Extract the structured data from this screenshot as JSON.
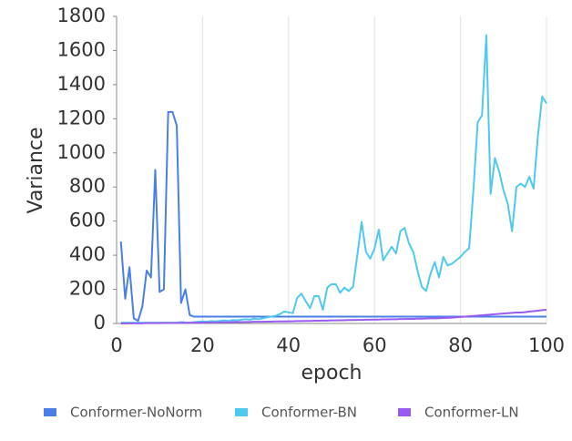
{
  "chart_data": {
    "type": "line",
    "xlabel": "epoch",
    "ylabel": "Variance",
    "xlim": [
      0,
      100
    ],
    "xticks": [
      0,
      20,
      40,
      60,
      80,
      100
    ],
    "ylim": [
      0,
      1800
    ],
    "yticks": [
      0,
      200,
      400,
      600,
      800,
      1000,
      1200,
      1400,
      1600,
      1800
    ],
    "grid": "x",
    "legend": "bottom",
    "x": [
      1,
      2,
      3,
      4,
      5,
      6,
      7,
      8,
      9,
      10,
      11,
      12,
      13,
      14,
      15,
      16,
      17,
      18,
      19,
      20,
      21,
      22,
      23,
      24,
      25,
      26,
      27,
      28,
      29,
      30,
      31,
      32,
      33,
      34,
      35,
      36,
      37,
      38,
      39,
      40,
      41,
      42,
      43,
      44,
      45,
      46,
      47,
      48,
      49,
      50,
      51,
      52,
      53,
      54,
      55,
      56,
      57,
      58,
      59,
      60,
      61,
      62,
      63,
      64,
      65,
      66,
      67,
      68,
      69,
      70,
      71,
      72,
      73,
      74,
      75,
      76,
      77,
      78,
      79,
      80,
      81,
      82,
      83,
      84,
      85,
      86,
      87,
      88,
      89,
      90,
      91,
      92,
      93,
      94,
      95,
      96,
      97,
      98,
      99,
      100
    ],
    "series": [
      {
        "name": "Conformer-NoNorm",
        "color": "#4a7fe6",
        "values": [
          480,
          145,
          330,
          30,
          15,
          100,
          310,
          270,
          900,
          185,
          200,
          1240,
          1240,
          1160,
          120,
          200,
          50,
          40,
          40,
          40,
          40,
          40,
          40,
          40,
          40,
          40,
          40,
          40,
          40,
          40,
          40,
          40,
          40,
          40,
          40,
          40,
          40,
          40,
          40,
          40,
          40,
          40,
          40,
          40,
          40,
          40,
          40,
          40,
          40,
          40,
          40,
          40,
          40,
          40,
          40,
          40,
          40,
          40,
          40,
          40,
          40,
          40,
          40,
          40,
          40,
          40,
          40,
          40,
          40,
          40,
          40,
          40,
          40,
          40,
          40,
          40,
          40,
          40,
          40,
          40,
          40,
          40,
          40,
          40,
          40,
          40,
          40,
          40,
          40,
          40,
          40,
          40,
          40,
          40,
          40,
          40,
          40,
          40,
          40,
          40
        ]
      },
      {
        "name": "Conformer-BN",
        "color": "#4fc9f0",
        "values": [
          5,
          5,
          5,
          5,
          5,
          5,
          5,
          5,
          5,
          5,
          5,
          5,
          5,
          5,
          8,
          6,
          5,
          8,
          10,
          12,
          10,
          14,
          12,
          15,
          18,
          15,
          20,
          18,
          22,
          25,
          22,
          28,
          25,
          30,
          35,
          40,
          45,
          55,
          70,
          65,
          60,
          150,
          175,
          130,
          90,
          160,
          160,
          80,
          210,
          230,
          230,
          180,
          210,
          190,
          215,
          400,
          595,
          420,
          380,
          440,
          550,
          370,
          410,
          450,
          410,
          540,
          560,
          470,
          420,
          310,
          215,
          190,
          290,
          360,
          270,
          390,
          340,
          350,
          370,
          390,
          420,
          440,
          780,
          1180,
          1220,
          1690,
          760,
          970,
          890,
          780,
          700,
          540,
          800,
          820,
          800,
          860,
          790,
          1100,
          1330,
          1290
        ]
      },
      {
        "name": "Conformer-LN",
        "color": "#9a5cf0",
        "values": [
          0,
          0,
          1,
          1,
          1,
          1,
          2,
          2,
          2,
          2,
          3,
          3,
          3,
          3,
          4,
          4,
          4,
          5,
          5,
          5,
          6,
          6,
          6,
          7,
          7,
          7,
          8,
          8,
          8,
          9,
          9,
          10,
          10,
          10,
          11,
          11,
          12,
          12,
          12,
          13,
          13,
          14,
          14,
          15,
          15,
          16,
          16,
          17,
          17,
          18,
          18,
          19,
          19,
          20,
          20,
          21,
          21,
          22,
          22,
          23,
          23,
          24,
          24,
          25,
          25,
          26,
          26,
          27,
          27,
          28,
          28,
          29,
          30,
          30,
          31,
          32,
          33,
          34,
          36,
          38,
          40,
          42,
          44,
          46,
          48,
          50,
          52,
          54,
          56,
          58,
          60,
          62,
          64,
          64,
          66,
          70,
          72,
          75,
          78,
          80
        ]
      }
    ]
  }
}
